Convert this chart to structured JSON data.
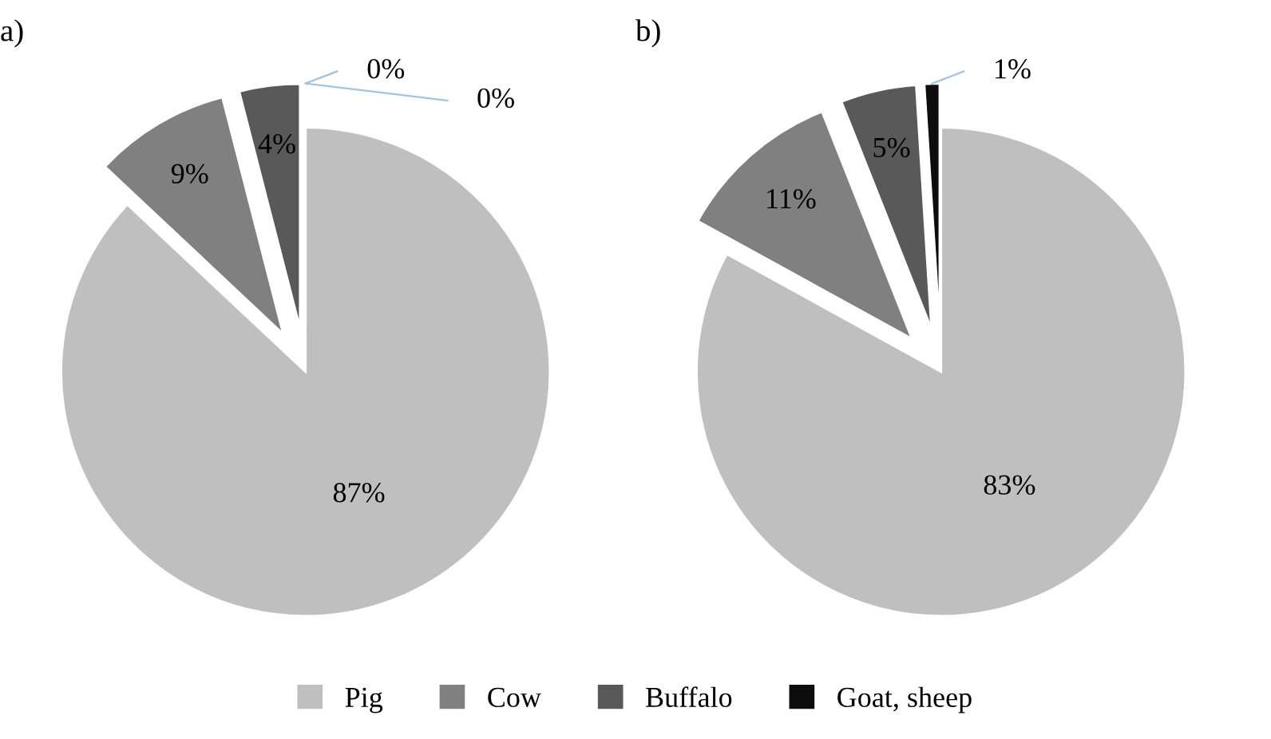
{
  "chart_data": [
    {
      "type": "pie",
      "title": "a)",
      "categories": [
        "Pig",
        "Cow",
        "Buffalo",
        "Goat, sheep",
        null
      ],
      "values": [
        87,
        9,
        4,
        0,
        0
      ],
      "value_labels": [
        "87%",
        "9%",
        "4%",
        "0%",
        "0%"
      ],
      "colors": [
        "#bfbfbf",
        "#808080",
        "#595959",
        "#0d0d0d",
        "#262626"
      ],
      "legend": "bottom"
    },
    {
      "type": "pie",
      "title": "b)",
      "categories": [
        null,
        null,
        null,
        null
      ],
      "values": [
        83,
        11,
        5,
        1
      ],
      "value_labels": [
        "83%",
        "11%",
        "5%",
        "1%"
      ],
      "colors": [
        "#bfbfbf",
        "#808080",
        "#595959",
        "#0d0d0d"
      ]
    }
  ]
}
